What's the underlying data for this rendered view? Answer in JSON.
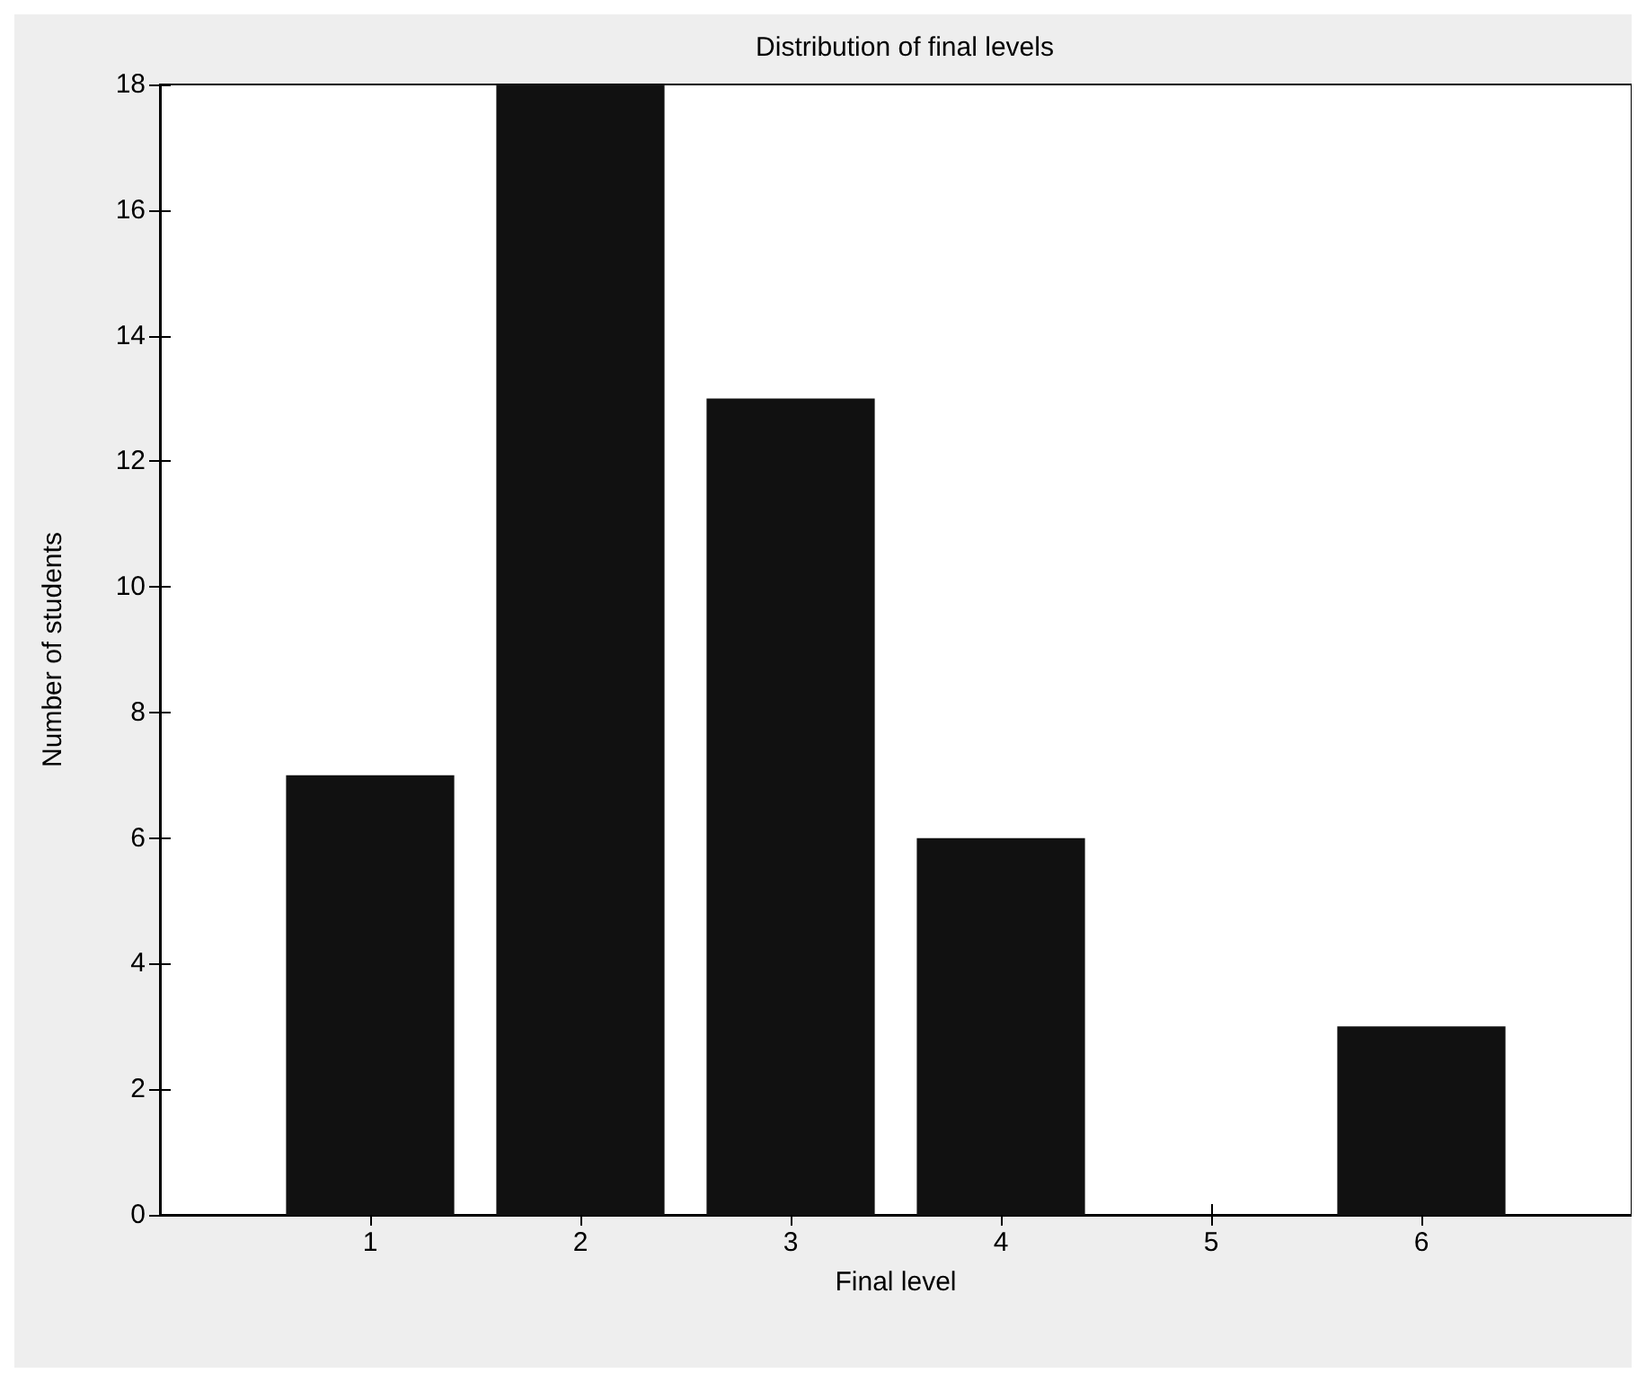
{
  "chart_data": {
    "type": "bar",
    "title": "Distribution of final levels",
    "xlabel": "Final level",
    "ylabel": "Number of students",
    "x": [
      1,
      2,
      3,
      4,
      5,
      6
    ],
    "values": [
      7,
      18,
      13,
      6,
      0,
      3
    ],
    "color": "#111111",
    "xlim": [
      0,
      7
    ],
    "xticks": [
      1,
      2,
      3,
      4,
      5,
      6
    ],
    "ylim": [
      0,
      18
    ],
    "yticks": [
      0,
      2,
      4,
      6,
      8,
      10,
      12,
      14,
      16,
      18
    ],
    "grid": false
  }
}
